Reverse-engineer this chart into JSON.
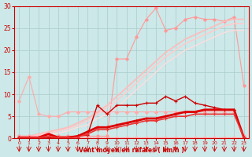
{
  "bg_color": "#cce8e8",
  "grid_color": "#aacccc",
  "xlabel": "Vent moyen/en rafales ( km/h )",
  "xlabel_color": "#cc0000",
  "tick_color": "#cc0000",
  "xlim": [
    -0.5,
    23.5
  ],
  "ylim": [
    0,
    30
  ],
  "yticks": [
    0,
    5,
    10,
    15,
    20,
    25,
    30
  ],
  "xticks": [
    0,
    1,
    2,
    3,
    4,
    5,
    6,
    7,
    8,
    9,
    10,
    11,
    12,
    13,
    14,
    15,
    16,
    17,
    18,
    19,
    20,
    21,
    22,
    23
  ],
  "series": [
    {
      "x": [
        0,
        1,
        2,
        3,
        4,
        5,
        6,
        7,
        8,
        9,
        10,
        11,
        12,
        13,
        14,
        15,
        16,
        17,
        18,
        19,
        20,
        21,
        22,
        23
      ],
      "y": [
        0.2,
        0.2,
        0.2,
        0.2,
        0.2,
        0.2,
        0.2,
        0.2,
        0.2,
        0.2,
        0.2,
        0.2,
        0.2,
        0.2,
        0.2,
        0.2,
        0.2,
        0.2,
        0.2,
        0.2,
        0.2,
        0.2,
        0.2,
        0.2
      ],
      "color": "#ffbbbb",
      "linewidth": 0.8,
      "marker": "D",
      "markersize": 2,
      "alpha": 1.0
    },
    {
      "x": [
        0,
        1,
        2,
        3,
        4,
        5,
        6,
        7,
        8,
        9,
        10,
        11,
        12,
        13,
        14,
        15,
        16,
        17,
        18,
        19,
        20,
        21,
        22,
        23
      ],
      "y": [
        8.5,
        14.0,
        5.5,
        5.0,
        5.0,
        6.0,
        6.0,
        6.0,
        6.0,
        6.0,
        6.0,
        6.0,
        6.0,
        6.0,
        6.0,
        6.0,
        6.0,
        6.0,
        6.0,
        6.0,
        6.0,
        6.0,
        6.0,
        0.5
      ],
      "color": "#ffaaaa",
      "linewidth": 0.8,
      "marker": "D",
      "markersize": 2,
      "alpha": 1.0
    },
    {
      "x": [
        0,
        1,
        2,
        3,
        4,
        5,
        6,
        7,
        8,
        9,
        10,
        11,
        12,
        13,
        14,
        15,
        16,
        17,
        18,
        19,
        20,
        21,
        22,
        23
      ],
      "y": [
        0.5,
        0.5,
        0.5,
        0.5,
        0.5,
        0.5,
        0.5,
        0.5,
        0.5,
        0.5,
        18.0,
        18.0,
        23.0,
        27.0,
        29.5,
        24.5,
        25.0,
        27.0,
        27.5,
        27.0,
        27.0,
        26.5,
        27.5,
        12.0
      ],
      "color": "#ff9999",
      "linewidth": 0.8,
      "marker": "D",
      "markersize": 2,
      "alpha": 1.0
    },
    {
      "x": [
        0,
        1,
        2,
        3,
        4,
        5,
        6,
        7,
        8,
        9,
        10,
        11,
        12,
        13,
        14,
        15,
        16,
        17,
        18,
        19,
        20,
        21,
        22,
        23
      ],
      "y": [
        0.5,
        0.5,
        1.0,
        1.5,
        2.0,
        2.5,
        3.5,
        4.5,
        6.0,
        7.5,
        9.5,
        11.5,
        13.5,
        15.5,
        17.5,
        19.5,
        21.0,
        22.5,
        23.5,
        24.5,
        25.5,
        26.5,
        27.0,
        27.0
      ],
      "color": "#ffbbbb",
      "linewidth": 1.2,
      "marker": null,
      "markersize": 0,
      "alpha": 1.0
    },
    {
      "x": [
        0,
        1,
        2,
        3,
        4,
        5,
        6,
        7,
        8,
        9,
        10,
        11,
        12,
        13,
        14,
        15,
        16,
        17,
        18,
        19,
        20,
        21,
        22,
        23
      ],
      "y": [
        0.3,
        0.3,
        0.8,
        1.2,
        1.7,
        2.2,
        3.0,
        4.0,
        5.5,
        7.0,
        8.5,
        10.5,
        12.5,
        14.5,
        16.5,
        18.5,
        20.0,
        21.5,
        22.5,
        23.5,
        24.5,
        25.5,
        26.0,
        26.0
      ],
      "color": "#ffcccc",
      "linewidth": 1.2,
      "marker": null,
      "markersize": 0,
      "alpha": 1.0
    },
    {
      "x": [
        0,
        1,
        2,
        3,
        4,
        5,
        6,
        7,
        8,
        9,
        10,
        11,
        12,
        13,
        14,
        15,
        16,
        17,
        18,
        19,
        20,
        21,
        22,
        23
      ],
      "y": [
        0.2,
        0.2,
        0.5,
        0.8,
        1.2,
        1.7,
        2.5,
        3.0,
        4.5,
        5.5,
        7.0,
        9.0,
        11.0,
        13.0,
        15.0,
        17.0,
        18.5,
        20.0,
        21.0,
        22.0,
        23.0,
        24.0,
        24.5,
        24.5
      ],
      "color": "#ffdddd",
      "linewidth": 1.0,
      "marker": null,
      "markersize": 0,
      "alpha": 1.0
    },
    {
      "x": [
        0,
        1,
        2,
        3,
        4,
        5,
        6,
        7,
        8,
        9,
        10,
        11,
        12,
        13,
        14,
        15,
        16,
        17,
        18,
        19,
        20,
        21,
        22,
        23
      ],
      "y": [
        0.2,
        0.2,
        0.2,
        0.2,
        0.2,
        0.3,
        0.5,
        0.8,
        7.5,
        5.5,
        7.5,
        7.5,
        7.5,
        8.0,
        8.0,
        9.5,
        8.5,
        9.5,
        8.0,
        7.5,
        7.0,
        6.5,
        6.5,
        0.2
      ],
      "color": "#cc0000",
      "linewidth": 1.0,
      "marker": "+",
      "markersize": 3,
      "alpha": 1.0
    },
    {
      "x": [
        0,
        1,
        2,
        3,
        4,
        5,
        6,
        7,
        8,
        9,
        10,
        11,
        12,
        13,
        14,
        15,
        16,
        17,
        18,
        19,
        20,
        21,
        22,
        23
      ],
      "y": [
        0.2,
        0.2,
        0.2,
        1.0,
        0.2,
        0.2,
        0.5,
        1.5,
        2.5,
        2.5,
        3.0,
        3.5,
        4.0,
        4.5,
        4.5,
        5.0,
        5.5,
        6.0,
        6.0,
        6.5,
        6.5,
        6.5,
        6.5,
        0.2
      ],
      "color": "#dd0000",
      "linewidth": 2.0,
      "marker": "+",
      "markersize": 3,
      "alpha": 1.0
    },
    {
      "x": [
        0,
        1,
        2,
        3,
        4,
        5,
        6,
        7,
        8,
        9,
        10,
        11,
        12,
        13,
        14,
        15,
        16,
        17,
        18,
        19,
        20,
        21,
        22,
        23
      ],
      "y": [
        0.2,
        0.2,
        0.2,
        0.5,
        0.2,
        0.2,
        0.3,
        1.0,
        2.0,
        2.0,
        2.5,
        3.0,
        3.5,
        4.0,
        4.0,
        4.5,
        5.0,
        5.0,
        5.5,
        5.5,
        5.5,
        5.5,
        5.5,
        0.2
      ],
      "color": "#ee3333",
      "linewidth": 1.2,
      "marker": "+",
      "markersize": 3,
      "alpha": 1.0
    }
  ]
}
